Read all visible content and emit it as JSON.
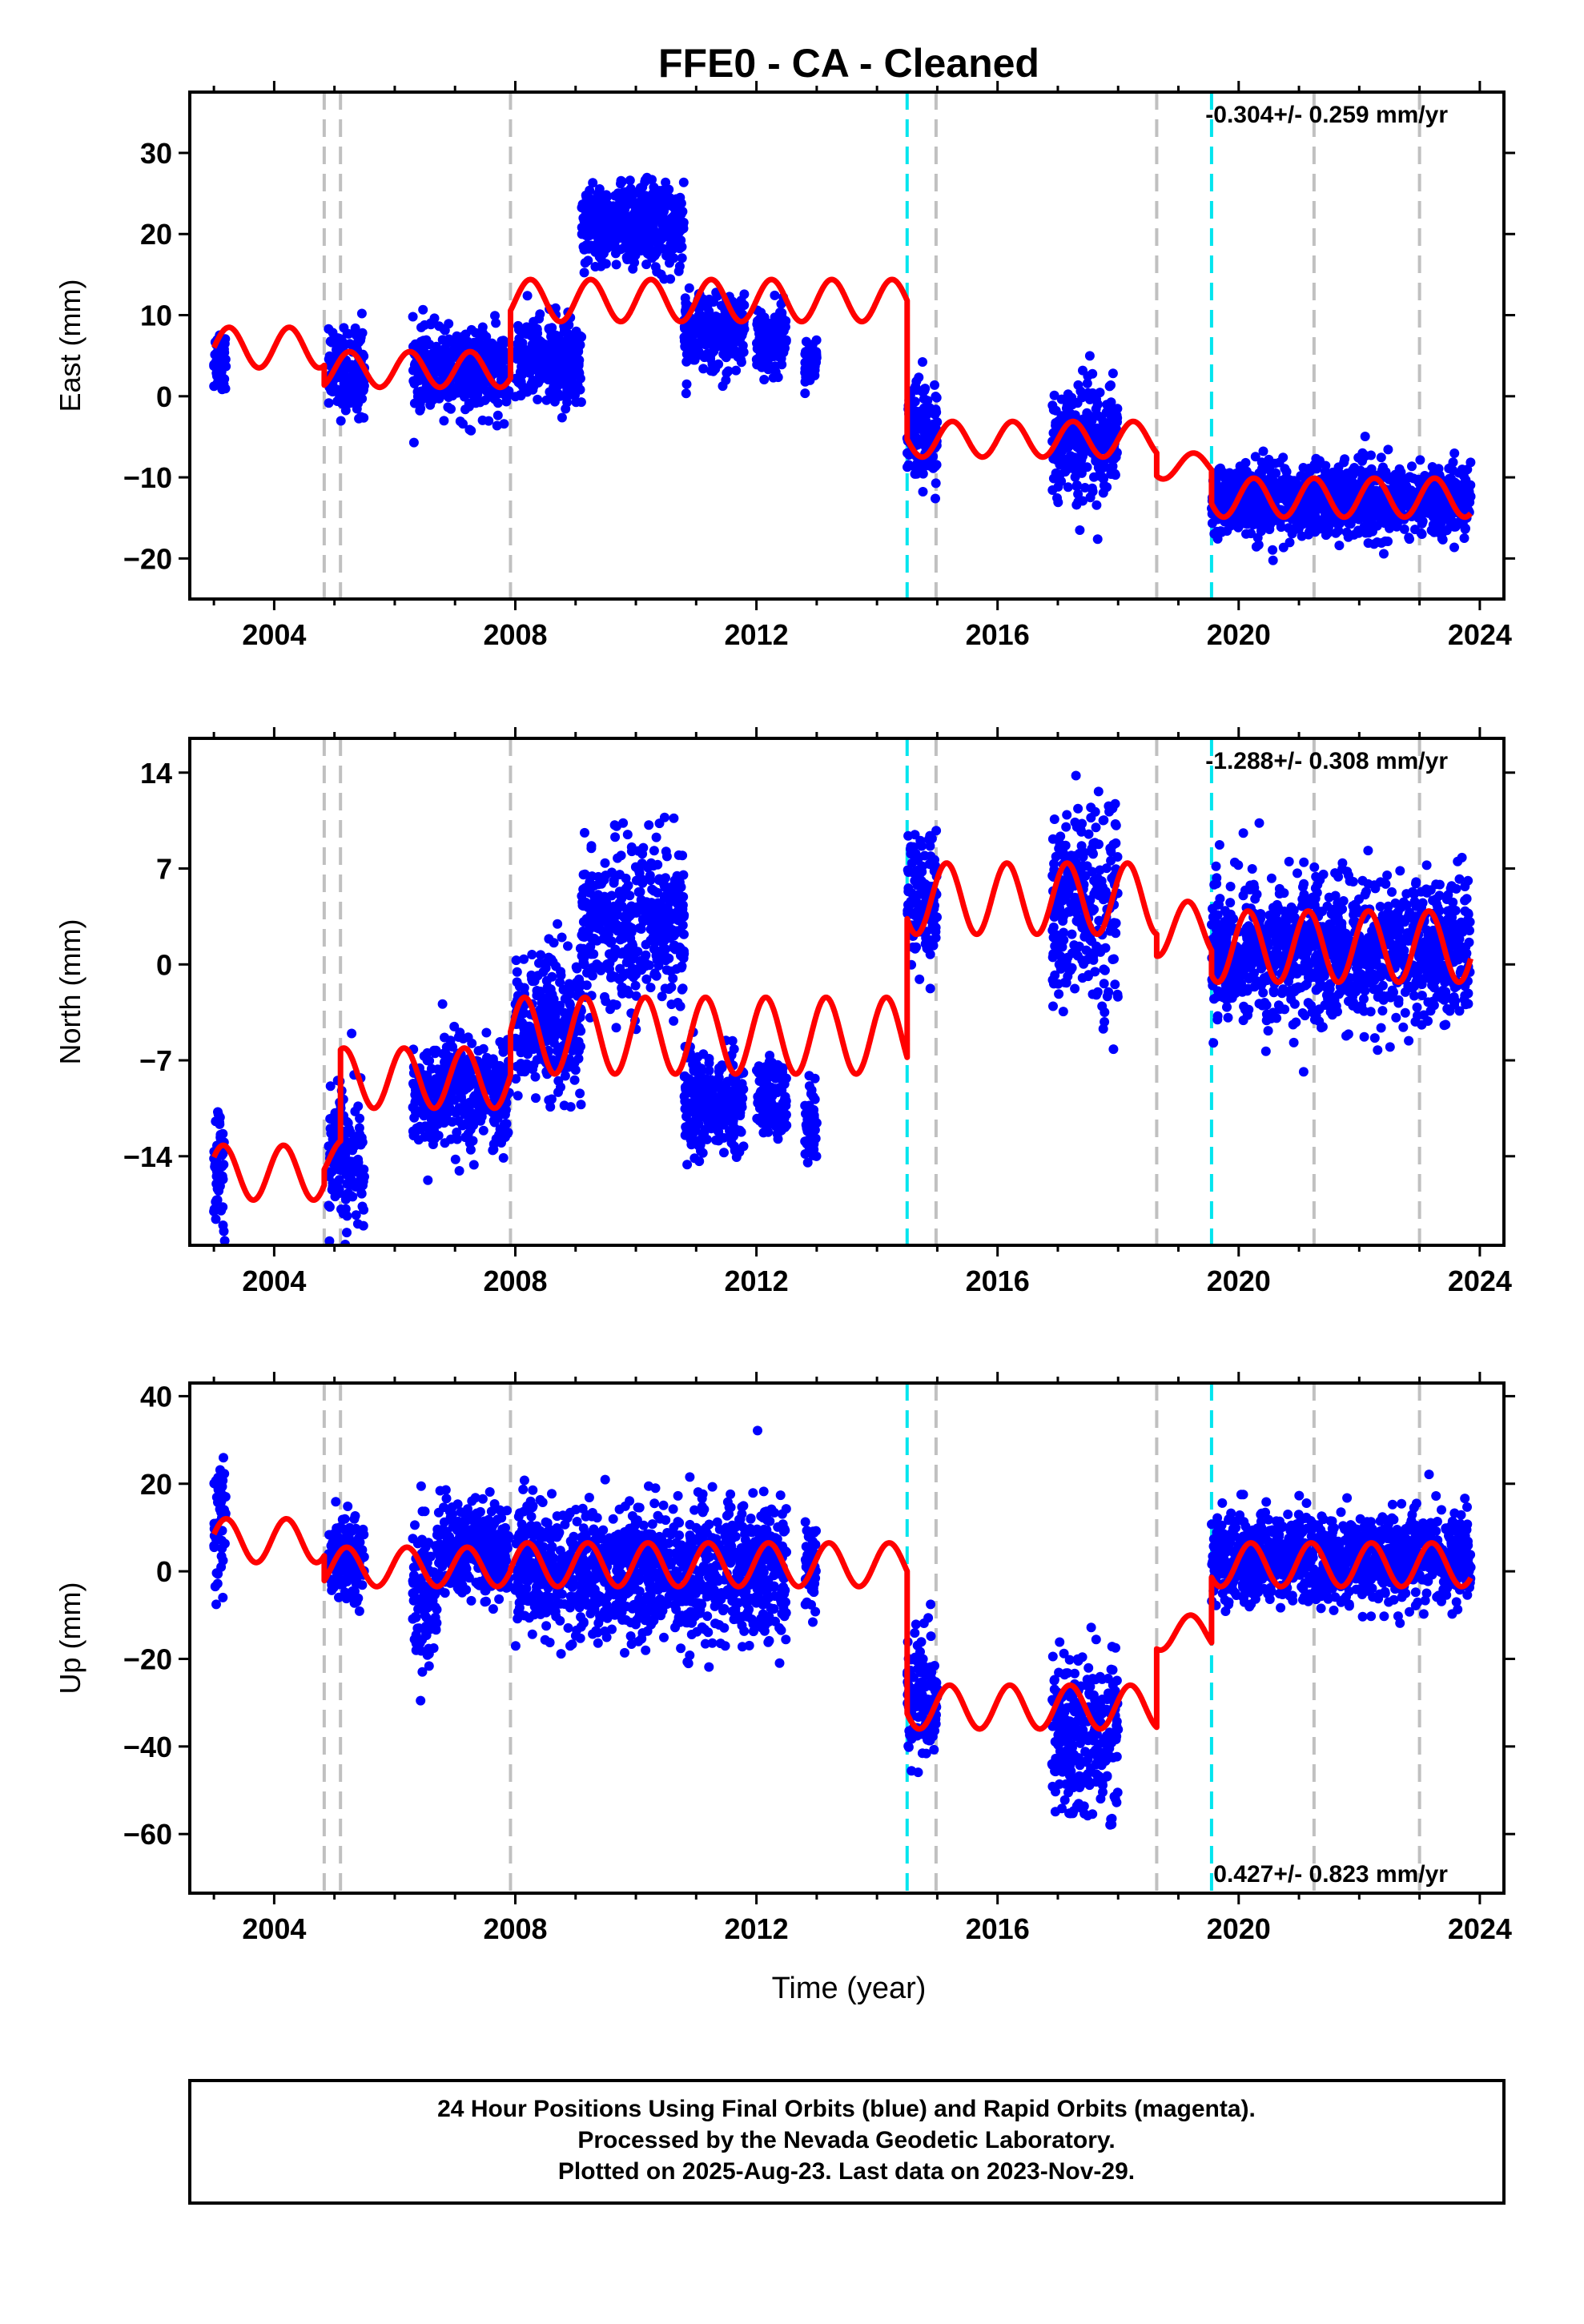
{
  "page": {
    "title": "FFE0  - CA - Cleaned",
    "xlabel": "Time (year)"
  },
  "footer": {
    "lines": [
      "24 Hour Positions Using Final Orbits (blue) and Rapid Orbits (magenta).",
      "Processed by the Nevada Geodetic Laboratory.",
      "Plotted on 2025-Aug-23. Last data on 2023-Nov-29."
    ]
  },
  "colors": {
    "data": "#0000ff",
    "model": "#ff0000",
    "gray_break": "#c0c0c0",
    "cyan_break": "#00e5ee",
    "frame": "#000000"
  },
  "chart_data": [
    {
      "type": "scatter",
      "name": "east",
      "ylabel": "East (mm)",
      "rate": "-0.304+/- 0.259 mm/yr",
      "rate_position": "top-right",
      "xlim": [
        2002.6,
        2024.4
      ],
      "ylim": [
        -25,
        37.5
      ],
      "xticks": [
        2004,
        2008,
        2012,
        2016,
        2020,
        2024
      ],
      "yticks": [
        -20,
        -10,
        0,
        10,
        20,
        30
      ],
      "ytick_labels": [
        "−20",
        "−10",
        "0",
        "10",
        "20",
        "30"
      ],
      "gray_breaks": [
        2004.83,
        2005.1,
        2007.92,
        2014.98,
        2018.64,
        2021.25,
        2023.0
      ],
      "cyan_breaks": [
        2014.5,
        2019.55
      ],
      "model_segments": [
        {
          "t0": 2003.0,
          "t1": 2004.83,
          "offset": 6.0,
          "amp": 2.5,
          "phase": 0.0
        },
        {
          "t0": 2004.83,
          "t1": 2007.92,
          "offset": 3.3,
          "amp": 2.2,
          "phase": 0.0
        },
        {
          "t0": 2007.92,
          "t1": 2014.5,
          "offset": 11.8,
          "amp": 2.6,
          "phase": 0.0
        },
        {
          "t0": 2014.5,
          "t1": 2018.64,
          "offset": -5.3,
          "amp": 2.2,
          "phase": 0.0
        },
        {
          "t0": 2018.64,
          "t1": 2019.55,
          "offset": -8.6,
          "amp": 1.6,
          "phase": 0.0
        },
        {
          "t0": 2019.55,
          "t1": 2023.85,
          "offset": -12.5,
          "amp": 2.4,
          "phase": 0.0
        }
      ],
      "scatter_blocks": [
        {
          "t0": 2003.0,
          "t1": 2003.2,
          "mean": 4.5,
          "sd": 2.0
        },
        {
          "t0": 2004.9,
          "t1": 2005.5,
          "mean": 3.0,
          "sd": 2.5
        },
        {
          "t0": 2006.3,
          "t1": 2007.9,
          "mean": 3.0,
          "sd": 2.5
        },
        {
          "t0": 2008.0,
          "t1": 2009.1,
          "mean": 4.5,
          "sd": 2.5
        },
        {
          "t0": 2009.1,
          "t1": 2010.8,
          "mean": 21.0,
          "sd": 2.5
        },
        {
          "t0": 2010.8,
          "t1": 2011.8,
          "mean": 8.0,
          "sd": 2.3
        },
        {
          "t0": 2012.0,
          "t1": 2012.5,
          "mean": 7.0,
          "sd": 2.0
        },
        {
          "t0": 2012.8,
          "t1": 2013.0,
          "mean": 4.0,
          "sd": 1.5
        },
        {
          "t0": 2014.5,
          "t1": 2015.0,
          "mean": -4.5,
          "sd": 3.5
        },
        {
          "t0": 2016.9,
          "t1": 2018.0,
          "mean": -6.0,
          "sd": 3.5
        },
        {
          "t0": 2019.55,
          "t1": 2023.85,
          "mean": -12.8,
          "sd": 2.2
        }
      ]
    },
    {
      "type": "scatter",
      "name": "north",
      "ylabel": "North (mm)",
      "rate": "-1.288+/- 0.308 mm/yr",
      "rate_position": "top-right",
      "xlim": [
        2002.6,
        2024.4
      ],
      "ylim": [
        -20.5,
        16.5
      ],
      "xticks": [
        2004,
        2008,
        2012,
        2016,
        2020,
        2024
      ],
      "yticks": [
        -14,
        -7,
        0,
        7,
        14
      ],
      "ytick_labels": [
        "−14",
        "−7",
        "0",
        "7",
        "14"
      ],
      "gray_breaks": [
        2004.83,
        2005.1,
        2007.92,
        2014.98,
        2018.64,
        2021.25,
        2023.0
      ],
      "cyan_breaks": [
        2014.5,
        2019.55
      ],
      "model_segments": [
        {
          "t0": 2003.0,
          "t1": 2004.83,
          "offset": -15.2,
          "amp": 2.0,
          "phase": 0.6
        },
        {
          "t0": 2004.83,
          "t1": 2005.1,
          "offset": -14.3,
          "amp": 1.5,
          "phase": 0.6
        },
        {
          "t0": 2005.1,
          "t1": 2007.92,
          "offset": -8.3,
          "amp": 2.2,
          "phase": 0.6
        },
        {
          "t0": 2007.92,
          "t1": 2014.5,
          "offset": -5.2,
          "amp": 2.8,
          "phase": 0.6
        },
        {
          "t0": 2014.5,
          "t1": 2018.64,
          "offset": 4.8,
          "amp": 2.6,
          "phase": 0.6
        },
        {
          "t0": 2018.64,
          "t1": 2019.55,
          "offset": 2.6,
          "amp": 2.0,
          "phase": 0.6
        },
        {
          "t0": 2019.55,
          "t1": 2023.85,
          "offset": 1.3,
          "amp": 2.6,
          "phase": 0.6
        }
      ],
      "scatter_blocks": [
        {
          "t0": 2003.0,
          "t1": 2003.2,
          "mean": -15.0,
          "sd": 2.5
        },
        {
          "t0": 2004.9,
          "t1": 2005.5,
          "mean": -14.5,
          "sd": 2.5
        },
        {
          "t0": 2006.3,
          "t1": 2007.9,
          "mean": -9.5,
          "sd": 2.0
        },
        {
          "t0": 2008.0,
          "t1": 2009.1,
          "mean": -4.5,
          "sd": 2.5
        },
        {
          "t0": 2009.1,
          "t1": 2010.8,
          "mean": 3.0,
          "sd": 2.8
        },
        {
          "t0": 2010.8,
          "t1": 2011.8,
          "mean": -10.0,
          "sd": 1.8
        },
        {
          "t0": 2012.0,
          "t1": 2012.5,
          "mean": -10.0,
          "sd": 1.5
        },
        {
          "t0": 2012.8,
          "t1": 2013.0,
          "mean": -11.5,
          "sd": 1.5
        },
        {
          "t0": 2014.5,
          "t1": 2015.0,
          "mean": 5.0,
          "sd": 2.3
        },
        {
          "t0": 2016.9,
          "t1": 2018.0,
          "mean": 4.0,
          "sd": 3.5
        },
        {
          "t0": 2019.55,
          "t1": 2023.85,
          "mean": 1.0,
          "sd": 2.6
        }
      ]
    },
    {
      "type": "scatter",
      "name": "up",
      "ylabel": "Up (mm)",
      "rate": "0.427+/- 0.823 mm/yr",
      "rate_position": "bottom-right",
      "xlim": [
        2002.6,
        2024.4
      ],
      "ylim": [
        -73.5,
        43
      ],
      "xticks": [
        2004,
        2008,
        2012,
        2016,
        2020,
        2024
      ],
      "yticks": [
        -60,
        -40,
        -20,
        0,
        20,
        40
      ],
      "ytick_labels": [
        "−60",
        "−40",
        "−20",
        "0",
        "20",
        "40"
      ],
      "gray_breaks": [
        2004.83,
        2005.1,
        2007.92,
        2014.98,
        2018.64,
        2021.25,
        2023.0
      ],
      "cyan_breaks": [
        2014.5,
        2019.55
      ],
      "model_segments": [
        {
          "t0": 2003.0,
          "t1": 2004.83,
          "offset": 7.0,
          "amp": 5.0,
          "phase": 0.3
        },
        {
          "t0": 2004.83,
          "t1": 2007.92,
          "offset": 1.0,
          "amp": 4.5,
          "phase": 0.3
        },
        {
          "t0": 2007.92,
          "t1": 2014.5,
          "offset": 1.5,
          "amp": 5.0,
          "phase": 0.3
        },
        {
          "t0": 2014.5,
          "t1": 2018.64,
          "offset": -31.0,
          "amp": 5.0,
          "phase": 0.3
        },
        {
          "t0": 2018.64,
          "t1": 2019.55,
          "offset": -14.0,
          "amp": 4.0,
          "phase": 0.3
        },
        {
          "t0": 2019.55,
          "t1": 2023.85,
          "offset": 1.5,
          "amp": 5.0,
          "phase": 0.3
        }
      ],
      "scatter_blocks": [
        {
          "t0": 2003.0,
          "t1": 2003.2,
          "mean": 10.0,
          "sd": 8.0
        },
        {
          "t0": 2004.9,
          "t1": 2005.5,
          "mean": 3.0,
          "sd": 5.0
        },
        {
          "t0": 2006.3,
          "t1": 2006.7,
          "mean": -6.0,
          "sd": 8.0
        },
        {
          "t0": 2006.7,
          "t1": 2007.9,
          "mean": 5.0,
          "sd": 5.0
        },
        {
          "t0": 2008.0,
          "t1": 2012.5,
          "mean": 0.0,
          "sd": 7.5
        },
        {
          "t0": 2012.8,
          "t1": 2013.0,
          "mean": 2.0,
          "sd": 5.0
        },
        {
          "t0": 2014.5,
          "t1": 2015.0,
          "mean": -28.0,
          "sd": 7.0
        },
        {
          "t0": 2016.9,
          "t1": 2018.0,
          "mean": -37.0,
          "sd": 9.0
        },
        {
          "t0": 2019.55,
          "t1": 2023.85,
          "mean": 3.0,
          "sd": 5.0
        }
      ]
    }
  ]
}
